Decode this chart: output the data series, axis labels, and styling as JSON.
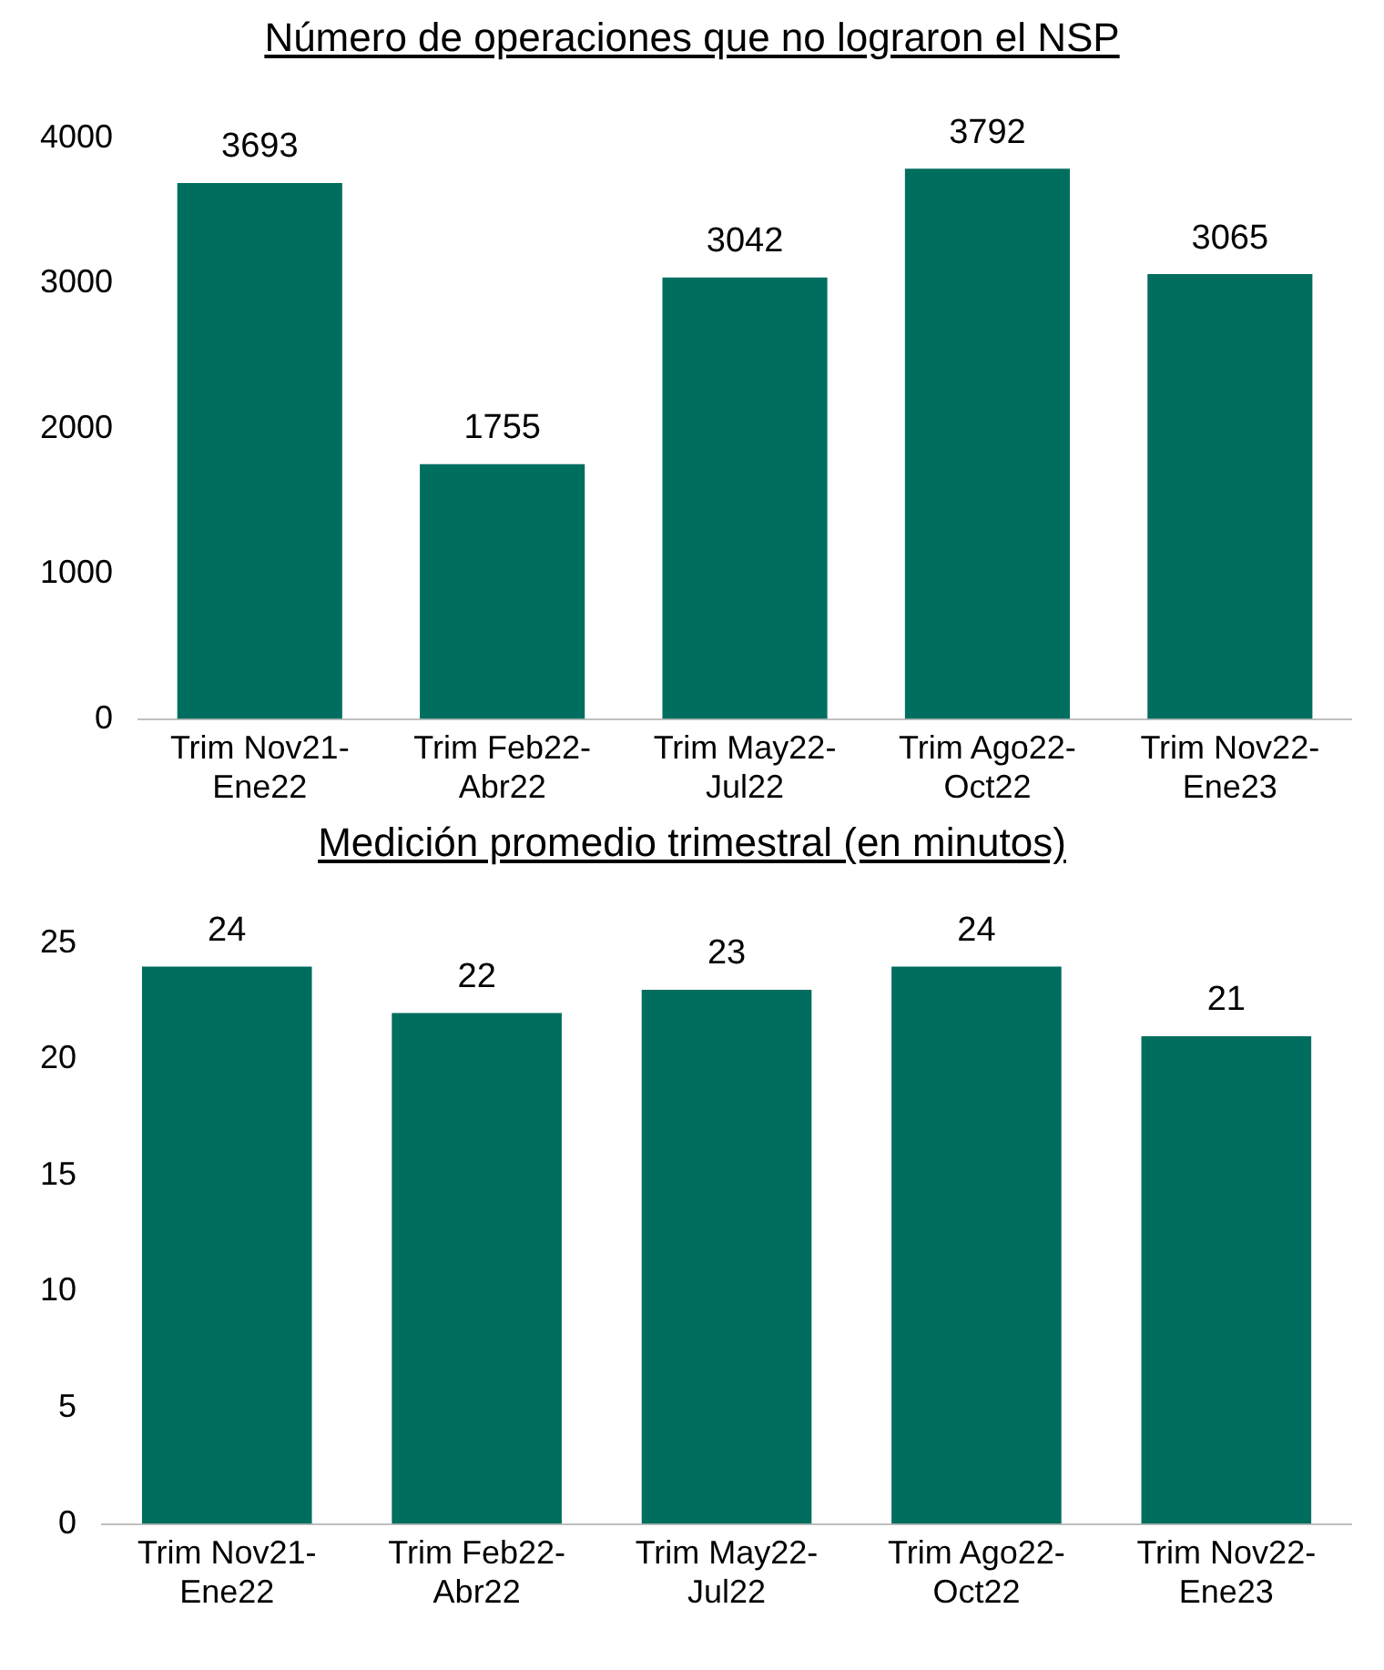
{
  "chart_data": [
    {
      "type": "bar",
      "title": "Número de operaciones que no lograron el NSP",
      "categories": [
        "Trim Nov21-Ene22",
        "Trim Feb22-Abr22",
        "Trim May22-Jul22",
        "Trim Ago22-Oct22",
        "Trim Nov22-Ene23"
      ],
      "values": [
        3693,
        1755,
        3042,
        3792,
        3065
      ],
      "color": "#006e5f",
      "ylim": [
        0,
        4000
      ],
      "yticks": [
        0,
        1000,
        2000,
        3000,
        4000
      ],
      "data_labels": true
    },
    {
      "type": "bar",
      "title": "Medición promedio trimestral (en minutos)",
      "categories": [
        "Trim Nov21-Ene22",
        "Trim Feb22-Abr22",
        "Trim May22-Jul22",
        "Trim Ago22-Oct22",
        "Trim Nov22-Ene23"
      ],
      "values": [
        24,
        22,
        23,
        24,
        21
      ],
      "color": "#006e5f",
      "ylim": [
        0,
        25
      ],
      "yticks": [
        0,
        5,
        10,
        15,
        20,
        25
      ],
      "data_labels": true
    }
  ]
}
